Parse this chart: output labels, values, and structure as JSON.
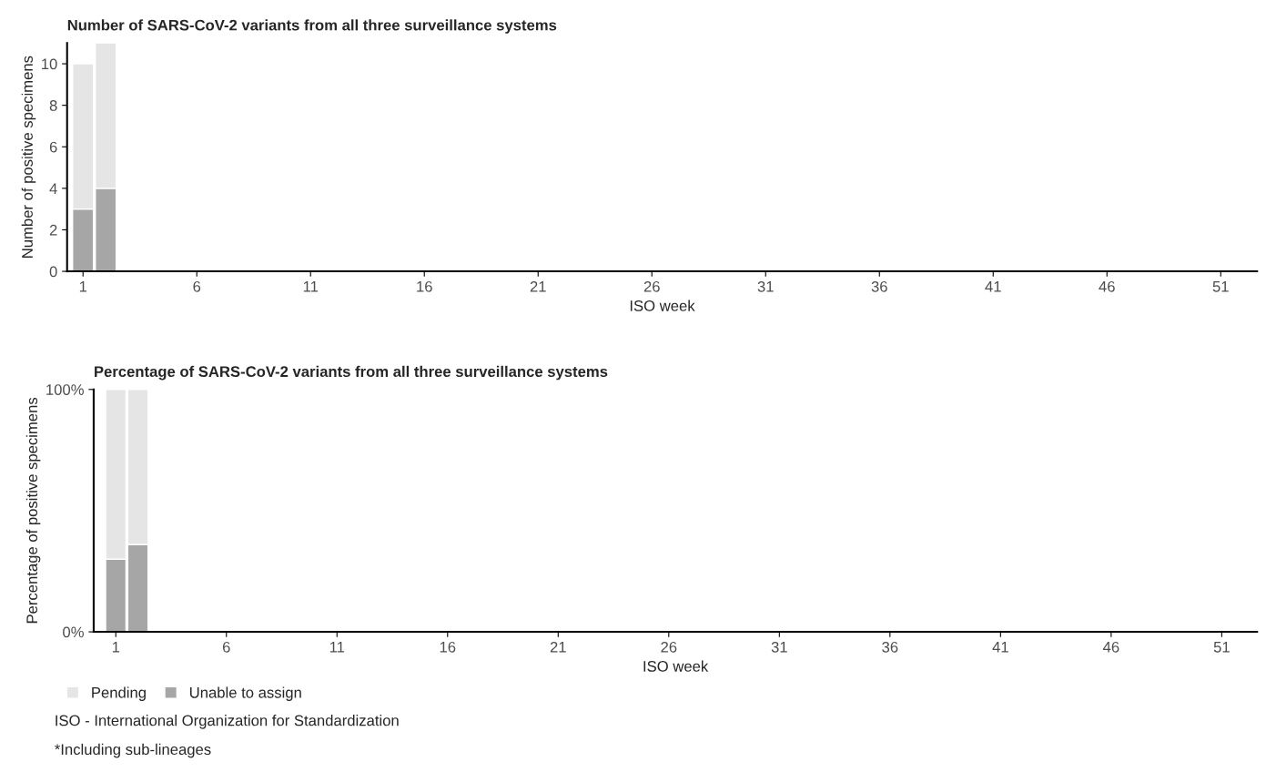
{
  "chart_data": [
    {
      "type": "bar",
      "title": "Number of SARS-CoV-2 variants from all three surveillance systems",
      "xlabel": "ISO week",
      "ylabel": "Number of positive specimens",
      "stacked": true,
      "categories": [
        "1",
        null,
        null,
        null,
        null,
        "6",
        null,
        null,
        null,
        null,
        "11",
        null,
        null,
        null,
        null,
        "16",
        null,
        null,
        null,
        null,
        "21",
        null,
        null,
        null,
        null,
        "26",
        null,
        null,
        null,
        null,
        "31",
        null,
        null,
        null,
        null,
        "36",
        null,
        null,
        null,
        null,
        "41",
        null,
        null,
        null,
        null,
        "46",
        null,
        null,
        null,
        null,
        "51",
        null
      ],
      "series": [
        {
          "color": "#a6a6a6",
          "values": [
            3,
            4,
            null,
            null,
            null,
            null,
            null,
            null,
            null,
            null,
            null,
            null,
            null,
            null,
            null,
            null,
            null,
            null,
            null,
            null,
            null,
            null,
            null,
            null,
            null,
            null,
            null,
            null,
            null,
            null,
            null,
            null,
            null,
            null,
            null,
            null,
            null,
            null,
            null,
            null,
            null,
            null,
            null,
            null,
            null,
            null,
            null,
            null,
            null,
            null,
            null,
            null
          ]
        },
        {
          "color": "#e5e5e5",
          "values": [
            7,
            7,
            null,
            null,
            null,
            null,
            null,
            null,
            null,
            null,
            null,
            null,
            null,
            null,
            null,
            null,
            null,
            null,
            null,
            null,
            null,
            null,
            null,
            null,
            null,
            null,
            null,
            null,
            null,
            null,
            null,
            null,
            null,
            null,
            null,
            null,
            null,
            null,
            null,
            null,
            null,
            null,
            null,
            null,
            null,
            null,
            null,
            null,
            null,
            null,
            null,
            null
          ]
        }
      ],
      "ylim": [
        0,
        11
      ],
      "yticks": [
        0,
        2,
        4,
        6,
        8,
        10
      ],
      "grid": false
    },
    {
      "type": "bar",
      "title": "Percentage of SARS-CoV-2 variants from all three surveillance systems",
      "xlabel": "ISO week",
      "ylabel": "Percentage of positive specimens",
      "stacked": true,
      "categories": [
        "1",
        null,
        null,
        null,
        null,
        "6",
        null,
        null,
        null,
        null,
        "11",
        null,
        null,
        null,
        null,
        "16",
        null,
        null,
        null,
        null,
        "21",
        null,
        null,
        null,
        null,
        "26",
        null,
        null,
        null,
        null,
        "31",
        null,
        null,
        null,
        null,
        "36",
        null,
        null,
        null,
        null,
        "41",
        null,
        null,
        null,
        null,
        "46",
        null,
        null,
        null,
        null,
        "51",
        null
      ],
      "series": [
        {
          "name": "Unable to assign",
          "color": "#a6a6a6",
          "values": [
            30,
            36,
            null,
            null,
            null,
            null,
            null,
            null,
            null,
            null,
            null,
            null,
            null,
            null,
            null,
            null,
            null,
            null,
            null,
            null,
            null,
            null,
            null,
            null,
            null,
            null,
            null,
            null,
            null,
            null,
            null,
            null,
            null,
            null,
            null,
            null,
            null,
            null,
            null,
            null,
            null,
            null,
            null,
            null,
            null,
            null,
            null,
            null,
            null,
            null,
            null,
            null
          ]
        },
        {
          "name": "Pending",
          "color": "#e5e5e5",
          "values": [
            70,
            64,
            null,
            null,
            null,
            null,
            null,
            null,
            null,
            null,
            null,
            null,
            null,
            null,
            null,
            null,
            null,
            null,
            null,
            null,
            null,
            null,
            null,
            null,
            null,
            null,
            null,
            null,
            null,
            null,
            null,
            null,
            null,
            null,
            null,
            null,
            null,
            null,
            null,
            null,
            null,
            null,
            null,
            null,
            null,
            null,
            null,
            null,
            null,
            null,
            null,
            null
          ]
        }
      ],
      "ylim": [
        0,
        100
      ],
      "yticks": [
        {
          "value": 0,
          "label": "0%"
        },
        {
          "value": 100,
          "label": "100%"
        }
      ],
      "grid": false,
      "legend": "bottom left",
      "annotations": [
        "ISO - International Organization for Standardization",
        "*Including sub-lineages"
      ]
    }
  ]
}
